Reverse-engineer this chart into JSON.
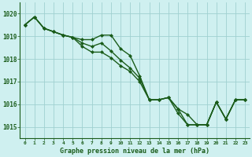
{
  "xlabel": "Graphe pression niveau de la mer (hPa)",
  "hours": [
    0,
    1,
    2,
    3,
    4,
    5,
    6,
    7,
    8,
    9,
    10,
    11,
    12,
    13,
    14,
    15,
    16,
    17,
    18,
    19,
    20,
    21,
    22,
    23
  ],
  "line1": [
    1019.5,
    1019.85,
    1019.35,
    1019.2,
    1019.05,
    1018.95,
    1018.85,
    1018.85,
    1019.05,
    1019.05,
    1018.45,
    1018.15,
    1017.25,
    1016.2,
    1016.2,
    1016.3,
    1015.8,
    1015.1,
    1015.1,
    1015.1,
    1016.1,
    1015.35,
    1016.2,
    1016.2
  ],
  "line2": [
    1019.5,
    1019.85,
    1019.35,
    1019.2,
    1019.05,
    1018.95,
    1018.7,
    1018.55,
    1018.7,
    1018.35,
    1017.95,
    1017.6,
    1017.15,
    1016.2,
    1016.2,
    1016.3,
    1015.8,
    1015.55,
    1015.1,
    1015.1,
    1016.1,
    1015.35,
    1016.2,
    1016.2
  ],
  "line3": [
    1019.5,
    1019.85,
    1019.35,
    1019.2,
    1019.05,
    1018.95,
    1018.55,
    1018.3,
    1018.3,
    1018.05,
    1017.7,
    1017.45,
    1017.0,
    1016.2,
    1016.2,
    1016.3,
    1015.6,
    1015.1,
    1015.1,
    1015.1,
    1016.1,
    1015.35,
    1016.2,
    1016.2
  ],
  "ylim_min": 1014.5,
  "ylim_max": 1020.5,
  "yticks": [
    1015,
    1016,
    1017,
    1018,
    1019,
    1020
  ],
  "bg_color": "#cff0f0",
  "line_color": "#1a5c1a",
  "grid_color": "#a0d0d0",
  "text_color": "#1a5c1a",
  "marker_size": 2.5,
  "line_width": 1.0
}
